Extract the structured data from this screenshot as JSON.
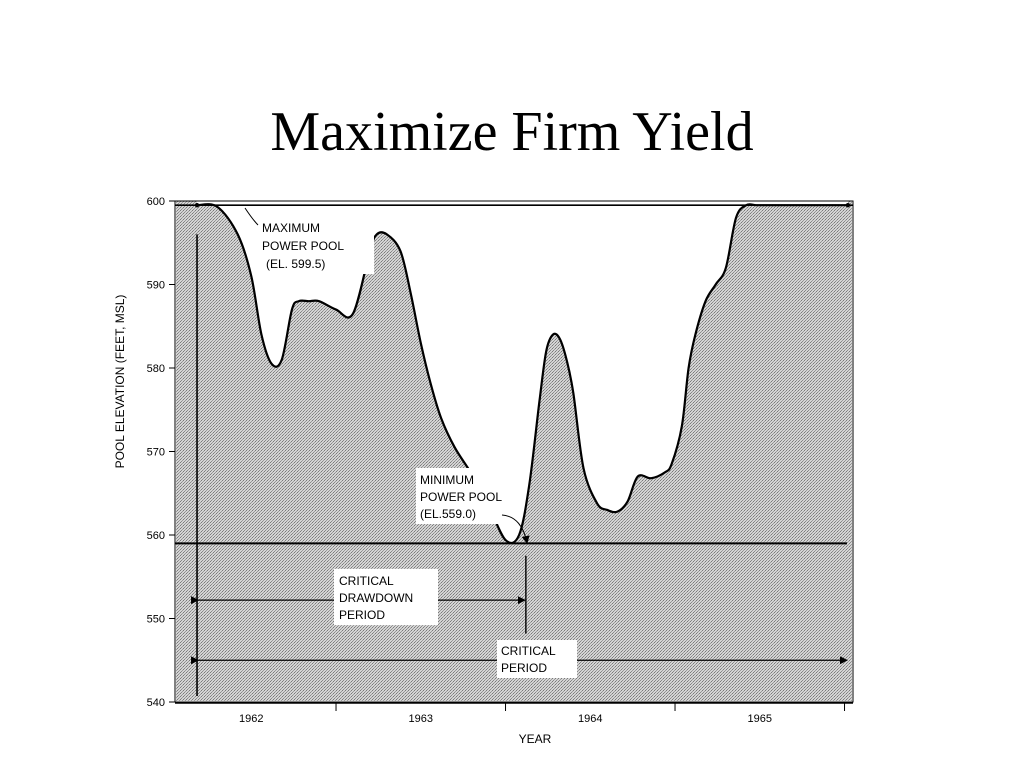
{
  "slide": {
    "title": "Maximize Firm Yield"
  },
  "chart_data": {
    "type": "area",
    "xlabel": "YEAR",
    "ylabel": "POOL ELEVATION (FEET, MSL)",
    "xlim": [
      1961.55,
      1965.55
    ],
    "ylim": [
      540,
      600
    ],
    "x_ticks": [
      1962,
      1963,
      1964,
      1965
    ],
    "y_ticks": [
      540,
      550,
      560,
      570,
      580,
      590,
      600
    ],
    "grid": false,
    "series": [
      {
        "x": [
          1961.68,
          1961.8,
          1961.92,
          1962.0,
          1962.06,
          1962.12,
          1962.18,
          1962.24,
          1962.28,
          1962.34,
          1962.4,
          1962.5,
          1962.6,
          1962.7,
          1962.74,
          1962.8,
          1962.88,
          1962.94,
          1963.0,
          1963.06,
          1963.12,
          1963.2,
          1963.3,
          1963.4,
          1963.5,
          1963.58,
          1963.64,
          1963.7,
          1963.74,
          1963.78,
          1963.82,
          1963.86,
          1963.9,
          1963.96,
          1964.04,
          1964.1,
          1964.16,
          1964.22,
          1964.28,
          1964.36,
          1964.44,
          1964.48,
          1964.54,
          1964.58,
          1964.62,
          1964.68,
          1964.74,
          1964.8,
          1964.86,
          1964.92,
          1964.98,
          1965.06,
          1965.12,
          1965.18,
          1965.24,
          1965.3,
          1965.34,
          1965.4,
          1965.46
        ],
        "y": [
          599.5,
          599.3,
          596,
          591,
          584,
          580.5,
          581,
          587,
          588,
          588,
          588,
          587,
          586.5,
          594,
          596,
          596,
          594,
          589,
          583,
          578,
          574,
          570.5,
          567.3,
          563.5,
          559.4,
          560,
          566,
          576,
          582,
          584,
          583.5,
          581,
          577,
          568,
          563.8,
          563,
          562.8,
          564,
          567,
          566.8,
          567.5,
          568.5,
          573,
          580,
          584,
          588,
          590,
          592,
          598,
          599.5,
          599.5,
          599.5,
          599.5,
          599.5,
          599.5,
          599.5,
          599.5,
          599.5,
          599.5
        ],
        "curve_end_x": 1965.52
      }
    ],
    "reference_lines": [
      {
        "y": 599.5,
        "label": [
          "MAXIMUM",
          "POWER POOL",
          "(EL. 599.5)"
        ]
      },
      {
        "y": 559.0,
        "label": [
          "MINIMUM",
          "POWER POOL",
          "(EL.559.0)"
        ]
      }
    ],
    "periods": [
      {
        "label": [
          "CRITICAL",
          "DRAWDOWN",
          "PERIOD"
        ],
        "from": 1961.68,
        "to": 1963.62
      },
      {
        "label": [
          "CRITICAL",
          "PERIOD"
        ],
        "from": 1961.68,
        "to": 1965.52
      }
    ]
  }
}
